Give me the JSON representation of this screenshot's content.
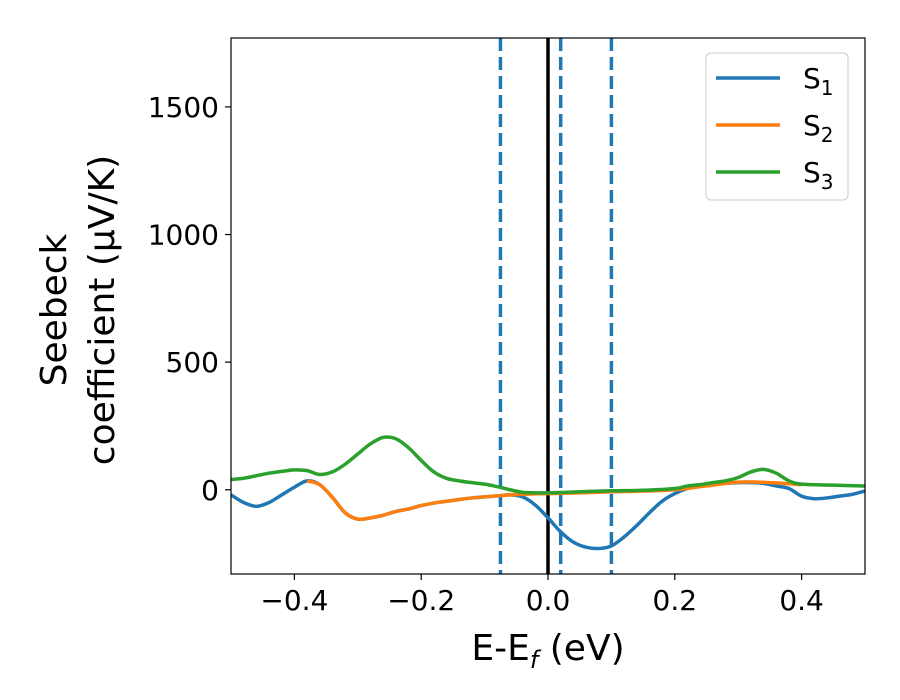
{
  "chart_data": {
    "type": "line",
    "xlabel": {
      "base": "E-E",
      "sub": "f",
      "tail": " (eV)"
    },
    "ylabel": {
      "line1": "Seebeck",
      "line2": "coefficient  (μV/K)"
    },
    "xlim": [
      -0.5,
      0.5
    ],
    "ylim": [
      -330,
      1770
    ],
    "xticks": [
      -0.4,
      -0.2,
      0.0,
      0.2,
      0.4
    ],
    "xtick_labels": [
      "−0.4",
      "−0.2",
      "0.0",
      "0.2",
      "0.4"
    ],
    "yticks": [
      0,
      500,
      1000,
      1500
    ],
    "ytick_labels": [
      "0",
      "500",
      "1000",
      "1500"
    ],
    "grid": false,
    "legend": {
      "position": "top-right"
    },
    "vlines": [
      {
        "x": 0.0,
        "style": "solid",
        "color": "#000000"
      },
      {
        "x": -0.075,
        "style": "dashed",
        "color": "#1f77b4"
      },
      {
        "x": 0.02,
        "style": "dashed",
        "color": "#1f77b4"
      },
      {
        "x": 0.1,
        "style": "dashed",
        "color": "#1f77b4"
      }
    ],
    "series": [
      {
        "name": "S",
        "sub": "1",
        "color": "#1f77b4",
        "x": [
          -0.5,
          -0.48,
          -0.46,
          -0.44,
          -0.42,
          -0.4,
          -0.38,
          -0.36,
          -0.34,
          -0.32,
          -0.3,
          -0.28,
          -0.26,
          -0.24,
          -0.22,
          -0.2,
          -0.18,
          -0.16,
          -0.14,
          -0.12,
          -0.1,
          -0.08,
          -0.06,
          -0.04,
          -0.02,
          0.0,
          0.02,
          0.04,
          0.06,
          0.08,
          0.1,
          0.12,
          0.14,
          0.16,
          0.18,
          0.2,
          0.22,
          0.24,
          0.26,
          0.28,
          0.3,
          0.32,
          0.34,
          0.36,
          0.38,
          0.4,
          0.42,
          0.44,
          0.46,
          0.48,
          0.5
        ],
        "y": [
          -20,
          -50,
          -65,
          -50,
          -20,
          10,
          35,
          20,
          -30,
          -90,
          -115,
          -110,
          -100,
          -85,
          -75,
          -62,
          -52,
          -45,
          -38,
          -32,
          -28,
          -24,
          -20,
          -28,
          -60,
          -110,
          -165,
          -205,
          -225,
          -230,
          -220,
          -185,
          -140,
          -90,
          -45,
          -15,
          5,
          15,
          20,
          25,
          28,
          28,
          25,
          15,
          5,
          -25,
          -35,
          -32,
          -25,
          -18,
          -5
        ]
      },
      {
        "name": "S",
        "sub": "2",
        "color": "#ff7f0e",
        "x": [
          -0.38,
          -0.36,
          -0.34,
          -0.32,
          -0.3,
          -0.28,
          -0.26,
          -0.24,
          -0.22,
          -0.2,
          -0.18,
          -0.16,
          -0.14,
          -0.12,
          -0.1,
          -0.08,
          -0.06,
          -0.04,
          -0.02,
          0.0,
          0.05,
          0.1,
          0.15,
          0.2,
          0.25,
          0.3,
          0.35,
          0.4
        ],
        "y": [
          35,
          20,
          -30,
          -90,
          -115,
          -110,
          -100,
          -85,
          -75,
          -62,
          -52,
          -45,
          -38,
          -32,
          -28,
          -24,
          -20,
          -18,
          -16,
          -15,
          -12,
          -8,
          -5,
          0,
          15,
          30,
          28,
          20
        ]
      },
      {
        "name": "S",
        "sub": "3",
        "color": "#2ca02c",
        "x": [
          -0.5,
          -0.48,
          -0.46,
          -0.44,
          -0.42,
          -0.4,
          -0.38,
          -0.36,
          -0.34,
          -0.32,
          -0.3,
          -0.28,
          -0.26,
          -0.24,
          -0.22,
          -0.2,
          -0.18,
          -0.16,
          -0.14,
          -0.12,
          -0.1,
          -0.08,
          -0.06,
          -0.04,
          -0.02,
          0.0,
          0.05,
          0.1,
          0.15,
          0.2,
          0.22,
          0.24,
          0.26,
          0.28,
          0.3,
          0.32,
          0.34,
          0.36,
          0.38,
          0.4,
          0.45,
          0.5
        ],
        "y": [
          40,
          45,
          55,
          65,
          72,
          78,
          75,
          60,
          70,
          100,
          140,
          180,
          205,
          200,
          165,
          115,
          70,
          45,
          35,
          28,
          22,
          12,
          0,
          -10,
          -12,
          -12,
          -8,
          -4,
          -2,
          5,
          15,
          20,
          28,
          35,
          48,
          70,
          80,
          65,
          35,
          22,
          18,
          15
        ]
      }
    ]
  }
}
